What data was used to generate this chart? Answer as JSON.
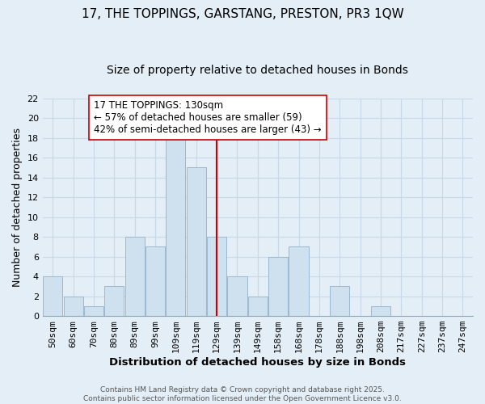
{
  "title": "17, THE TOPPINGS, GARSTANG, PRESTON, PR3 1QW",
  "subtitle": "Size of property relative to detached houses in Bonds",
  "xlabel": "Distribution of detached houses by size in Bonds",
  "ylabel": "Number of detached properties",
  "bar_labels": [
    "50sqm",
    "60sqm",
    "70sqm",
    "80sqm",
    "89sqm",
    "99sqm",
    "109sqm",
    "119sqm",
    "129sqm",
    "139sqm",
    "149sqm",
    "158sqm",
    "168sqm",
    "178sqm",
    "188sqm",
    "198sqm",
    "208sqm",
    "217sqm",
    "227sqm",
    "237sqm",
    "247sqm"
  ],
  "bar_values": [
    4,
    2,
    1,
    3,
    8,
    7,
    18,
    15,
    8,
    4,
    2,
    6,
    7,
    0,
    3,
    0,
    1,
    0,
    0,
    0,
    0
  ],
  "bar_color": "#cfe0ef",
  "bar_edge_color": "#9ab8d0",
  "vline_index": 8,
  "vline_color": "#cc0000",
  "annotation_text": "17 THE TOPPINGS: 130sqm\n← 57% of detached houses are smaller (59)\n42% of semi-detached houses are larger (43) →",
  "annotation_box_facecolor": "#ffffff",
  "annotation_box_edgecolor": "#cc0000",
  "ylim": [
    0,
    22
  ],
  "yticks": [
    0,
    2,
    4,
    6,
    8,
    10,
    12,
    14,
    16,
    18,
    20,
    22
  ],
  "grid_color": "#c8d8e8",
  "bg_color": "#e4eef6",
  "footer1": "Contains HM Land Registry data © Crown copyright and database right 2025.",
  "footer2": "Contains public sector information licensed under the Open Government Licence v3.0.",
  "title_fontsize": 11,
  "subtitle_fontsize": 10,
  "xlabel_fontsize": 9.5,
  "ylabel_fontsize": 9,
  "tick_fontsize": 8,
  "annotation_fontsize": 8.5,
  "footer_fontsize": 6.5
}
